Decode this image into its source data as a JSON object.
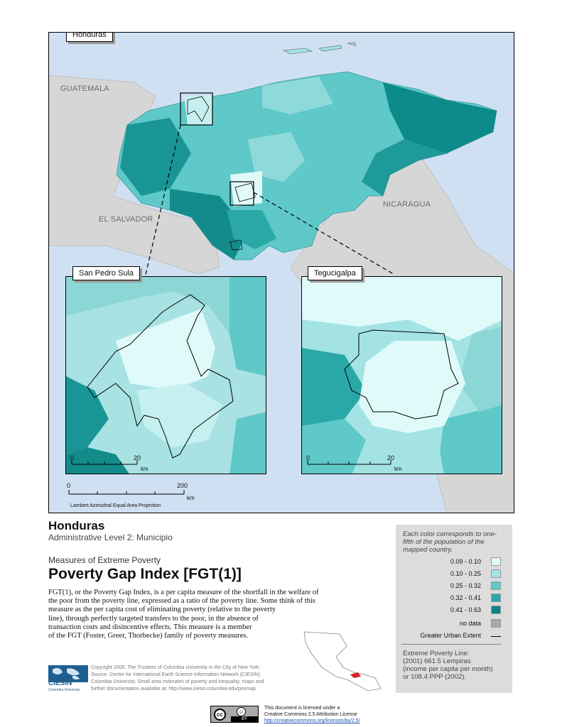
{
  "map": {
    "main_label": "Honduras",
    "neighbors": {
      "guatemala": "GUATEMALA",
      "el_salvador": "EL SALVADOR",
      "nicaragua": "NICARAGUA"
    },
    "insets": [
      {
        "label": "San Pedro Sula",
        "scale_zero": "0",
        "scale_max": "20",
        "scale_unit": "km"
      },
      {
        "label": "Tegucigalpa",
        "scale_zero": "0",
        "scale_max": "20",
        "scale_unit": "km"
      }
    ],
    "scale": {
      "zero": "0",
      "max": "200",
      "unit": "km"
    },
    "projection": "Lambert Azimuthal Equal Area Projection"
  },
  "title": {
    "country": "Honduras",
    "admin_level": "Administrative Level 2: Municipio",
    "series": "Measures of Extreme Poverty",
    "main": "Poverty Gap Index [FGT(1)]"
  },
  "description": [
    "FGT(1), or the Poverty Gap Index, is a per capita measure of the shortfall in the welfare of",
    "the poor from the poverty line, expressed as a ratio of the poverty line.  Some think of this",
    "measure as the per capita cost of eliminating poverty (relative to the poverty",
    "line), through perfectly targeted transfers to the poor, in the absence of",
    "transaction costs and disincentive effects.  This measure is a member",
    "of the FGT (Foster, Greer, Thorbecke) family of poverty measures."
  ],
  "legend": {
    "note": [
      "Each color corresponds to one-",
      "fifth of the population of the",
      "mapped country."
    ],
    "classes": [
      {
        "label": "0.09 - 0.10",
        "color": "#e0fafa"
      },
      {
        "label": "0.10 - 0.25",
        "color": "#a3e3e3"
      },
      {
        "label": "0.25 - 0.32",
        "color": "#5fc8c8"
      },
      {
        "label": "0.32 - 0.41",
        "color": "#2aa8a8"
      },
      {
        "label": "0.41 - 0.63",
        "color": "#0a8585"
      }
    ],
    "no_data": {
      "label": "no data",
      "color": "#a9a9a9"
    },
    "urban_extent": "Greater Urban Extent",
    "poverty_line": [
      "Extreme Poverty Line:",
      "(2001) 661.5 Lempiras",
      "(income per capita per month)",
      "or 108.4 PPP (2002)."
    ]
  },
  "credits": {
    "copyright": [
      "Copyright 2005. The Trustees of Columbia University in the City of New York.",
      "Source: Center for International Earth Science Information Network (CIESIN),",
      "Columbia University. Small area estimates of poverty and inequality; maps and",
      "further documentation available at: http://www.ciesin.columbia.edu/povmap"
    ],
    "logo_text": "CIESIN",
    "logo_sub": "Columbia University"
  },
  "license": {
    "badge_cc": "cc",
    "badge_by": "BY",
    "lines": [
      "This document is licensed under a",
      "Creative Commons 2.5 Attribution License"
    ],
    "url": "http://creativecommons.org/licenses/by/2.5/"
  }
}
